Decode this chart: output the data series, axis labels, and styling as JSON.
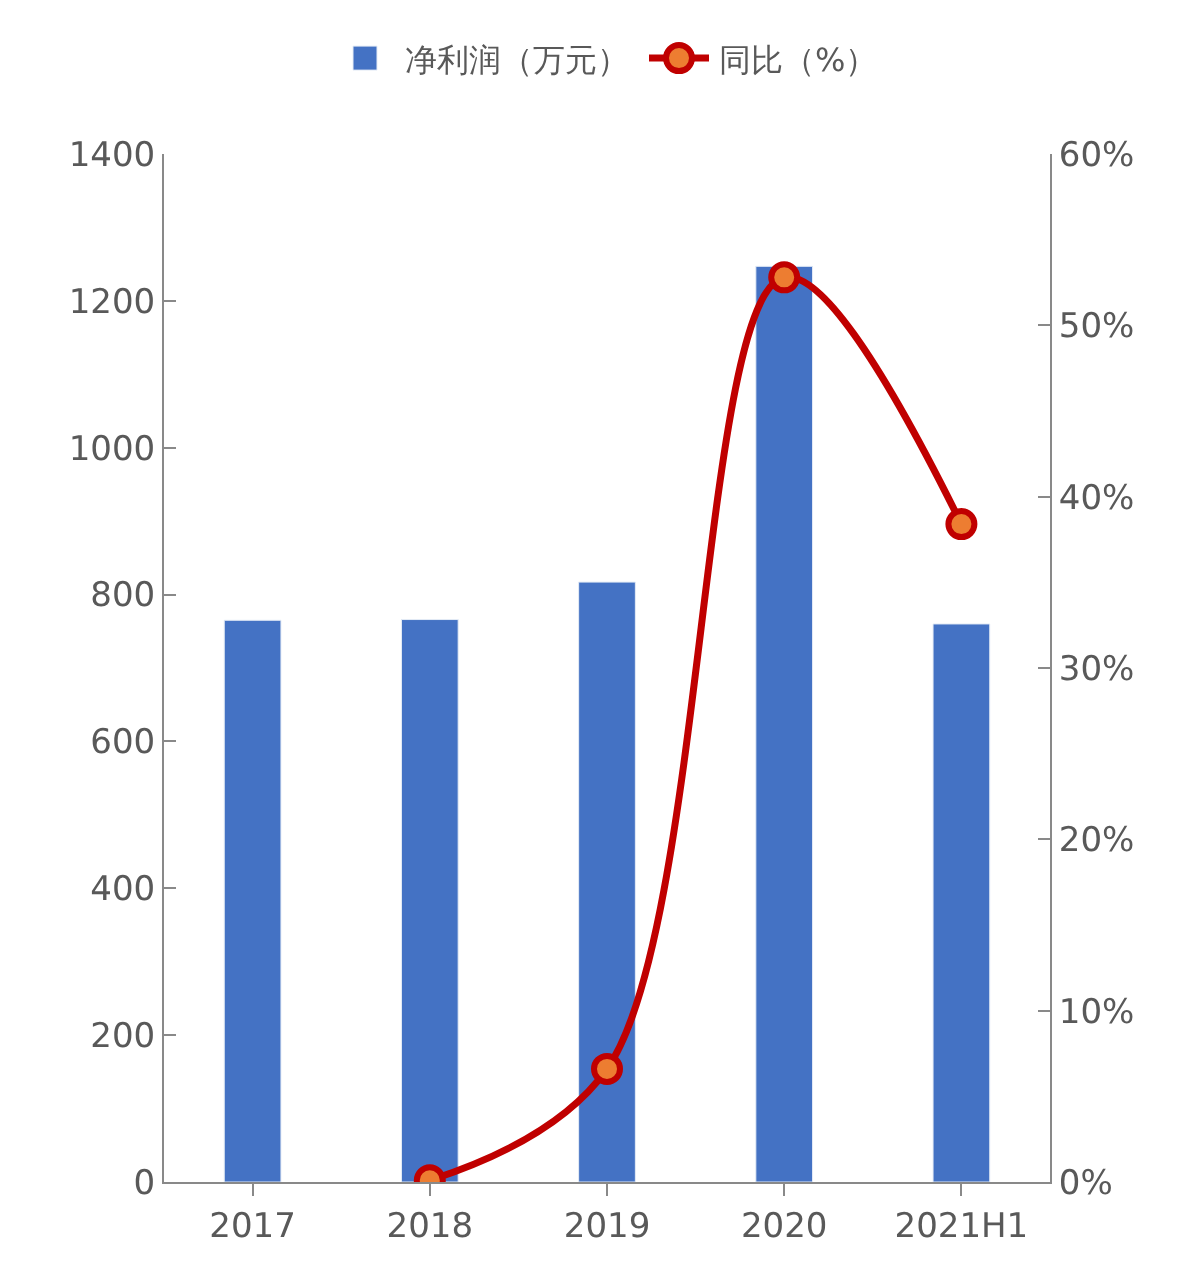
{
  "chart_data": {
    "type": "bar",
    "categories": [
      "2017",
      "2018",
      "2019",
      "2020",
      "2021H1"
    ],
    "series": [
      {
        "name": "净利润（万元）",
        "color": "#4472c4",
        "values": [
          765,
          766,
          817,
          1247,
          760
        ]
      },
      {
        "name": "同比（%）",
        "type": "line",
        "axis": "y2",
        "color": "#c00000",
        "values": [
          null,
          0.1,
          6.6,
          52.8,
          38.4
        ],
        "marker": "circle",
        "line_style": "solid"
      }
    ],
    "ylim": [
      0,
      1400
    ],
    "yticks": [
      0,
      200,
      400,
      600,
      800,
      1000,
      1200,
      1400
    ],
    "y2lim": [
      0,
      60
    ],
    "y2ticks": [
      {
        "value": 0,
        "label": "0%"
      },
      {
        "value": 10,
        "label": "10%"
      },
      {
        "value": 20,
        "label": "20%"
      },
      {
        "value": 30,
        "label": "30%"
      },
      {
        "value": 40,
        "label": "40%"
      },
      {
        "value": 50,
        "label": "50%"
      },
      {
        "value": 60,
        "label": "60%"
      }
    ],
    "legend": "top"
  }
}
